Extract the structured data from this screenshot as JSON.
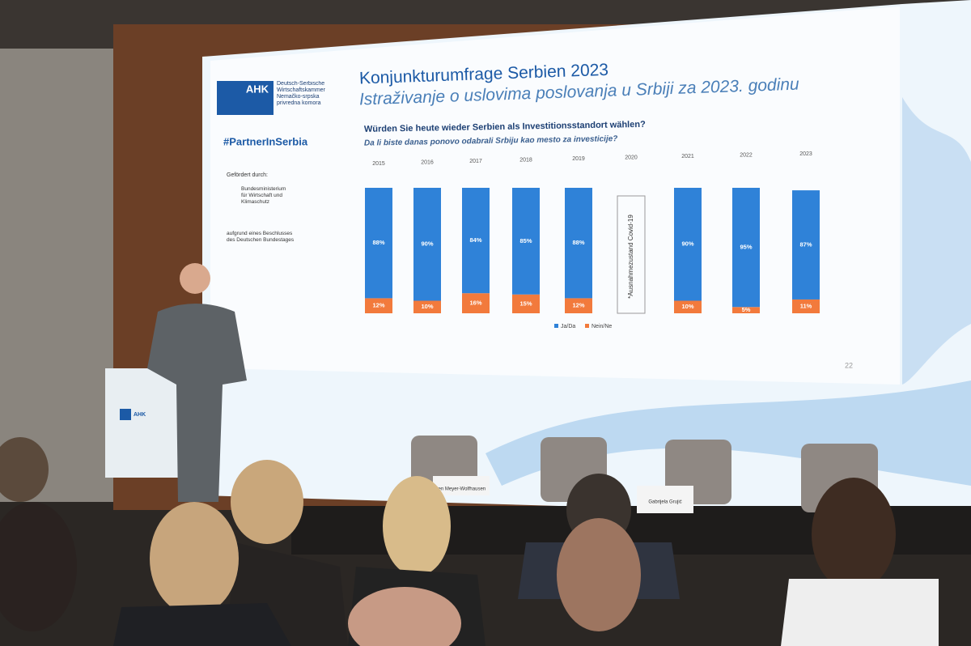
{
  "chart_data": {
    "type": "bar",
    "stacked": true,
    "title": "Konjunkturumfrage Serbien 2023",
    "subtitle": "Istraživanje o uslovima poslovanja u Srbiji za 2023. godinu",
    "question": "Würden Sie heute wieder Serbien als Investitionsstandort wählen?",
    "question_translation": "Da li biste danas ponovo odabrali Srbiju kao mesto za investicije?",
    "categories": [
      "2015",
      "2016",
      "2017",
      "2018",
      "2019",
      "2020",
      "2021",
      "2022",
      "2023"
    ],
    "series": [
      {
        "name": "Ja/Da",
        "color": "#2f82d8",
        "values": [
          88,
          90,
          84,
          85,
          88,
          null,
          90,
          95,
          87
        ],
        "value_labels": [
          "88%",
          "90%",
          "84%",
          "85%",
          "88%",
          null,
          "90%",
          "95%",
          "87%"
        ]
      },
      {
        "name": "Nein/Ne",
        "color": "#f27a3c",
        "values": [
          12,
          10,
          16,
          15,
          12,
          null,
          10,
          5,
          11
        ],
        "value_labels": [
          "12%",
          "10%",
          "16%",
          "15%",
          "12%",
          null,
          "10%",
          "5%",
          "11%"
        ]
      }
    ],
    "annotation": "*Ausnahmezustand Covid-19",
    "page_number": "22"
  },
  "slide": {
    "logo": "AHK",
    "chamber_de": "Deutsch-Serbische Wirtschaftskammer",
    "chamber_sr": "Nemačko-srpska privredna komora",
    "hashtag": "#PartnerInSerbia",
    "funded_by": "Gefördert durch:",
    "ministry": "Bundesministerium für Wirtschaft und Klimaschutz",
    "resolution": "aufgrund eines Beschlusses des Deutschen Bundestages"
  },
  "scene": {
    "podium_logo": "AHK",
    "nameplate_1": "ten Meyer-Wolfhausen",
    "nameplate_2": "Gabrijela Grujić"
  }
}
